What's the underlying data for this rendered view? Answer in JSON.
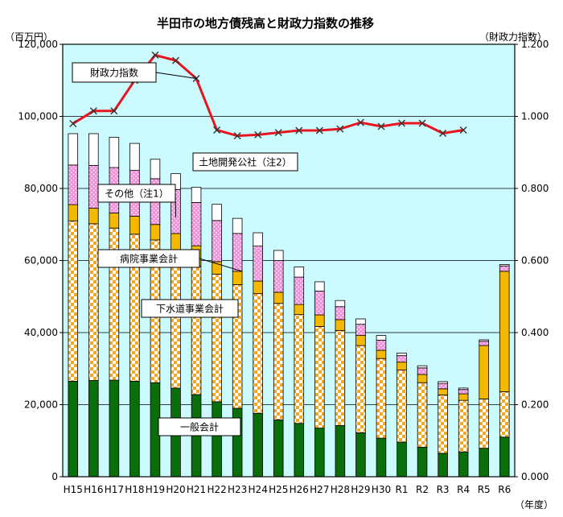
{
  "chart_data": {
    "type": "bar",
    "subtype": "stacked-bar-with-line",
    "title": "半田市の地方債残高と財政力指数の推移",
    "y_left_unit": "（百万円）",
    "y_right_unit": "（財政力指数）",
    "x_unit": "（年度）",
    "categories": [
      "H15",
      "H16",
      "H17",
      "H18",
      "H19",
      "H20",
      "H21",
      "H22",
      "H23",
      "H24",
      "H25",
      "H26",
      "H27",
      "H28",
      "H29",
      "H30",
      "R1",
      "R2",
      "R3",
      "R4",
      "R5",
      "R6"
    ],
    "ylim_left": [
      0,
      120000
    ],
    "ylim_right": [
      0.0,
      1.2
    ],
    "y_left_ticks": [
      "0",
      "20,000",
      "40,000",
      "60,000",
      "80,000",
      "100,000",
      "120,000"
    ],
    "y_right_ticks": [
      "0.000",
      "0.200",
      "0.400",
      "0.600",
      "0.800",
      "1.000",
      "1.200"
    ],
    "grid": true,
    "plot_background": "#ccfbff",
    "series": [
      {
        "name": "一般会計",
        "color": "#0a6e0a",
        "pattern": "solid",
        "values": [
          26500,
          26700,
          26800,
          26500,
          26100,
          24600,
          22800,
          20800,
          19000,
          17600,
          15800,
          14800,
          13500,
          14200,
          12200,
          10700,
          9600,
          8200,
          6500,
          6900,
          7900,
          11000
        ]
      },
      {
        "name": "下水道事業会計",
        "color": "#f5a623",
        "pattern": "checker",
        "values": [
          44500,
          43500,
          42200,
          40800,
          39600,
          37800,
          35600,
          35400,
          34300,
          33200,
          32300,
          30200,
          28200,
          26400,
          24200,
          22100,
          20000,
          17900,
          16200,
          14300,
          13700,
          12600
        ]
      },
      {
        "name": "病院事業会計",
        "color": "#f5b800",
        "pattern": "solid",
        "values": [
          4500,
          4300,
          4200,
          5000,
          4300,
          5100,
          5700,
          3500,
          3700,
          3500,
          3100,
          2800,
          3200,
          3000,
          2800,
          2300,
          2200,
          2300,
          1700,
          1800,
          14800,
          33400
        ]
      },
      {
        "name": "その他（注1）",
        "color": "#f090d8",
        "pattern": "dotted",
        "values": [
          11000,
          11900,
          12600,
          12700,
          12700,
          12200,
          12000,
          11400,
          10500,
          9700,
          8800,
          7600,
          6600,
          3600,
          3100,
          2800,
          1800,
          1800,
          1500,
          1200,
          1200,
          1500
        ]
      },
      {
        "name": "土地開発公社（注2）",
        "color": "#ffffff",
        "pattern": "solid",
        "values": [
          8700,
          8800,
          8400,
          7500,
          5400,
          4400,
          4200,
          4500,
          4200,
          3700,
          2800,
          2800,
          2600,
          1700,
          1500,
          1300,
          700,
          600,
          500,
          400,
          400,
          400
        ]
      }
    ],
    "line": {
      "name": "財政力指数",
      "color": "#e8141e",
      "values": [
        0.98,
        1.015,
        1.015,
        1.1,
        1.17,
        1.155,
        1.105,
        0.962,
        0.946,
        0.949,
        0.955,
        0.961,
        0.961,
        0.965,
        0.983,
        0.972,
        0.981,
        0.981,
        0.953,
        0.962,
        null,
        null
      ]
    },
    "callouts": [
      "財政力指数",
      "土地開発公社（注2）",
      "その他（注1）",
      "病院事業会計",
      "下水道事業会計",
      "一般会計"
    ]
  }
}
